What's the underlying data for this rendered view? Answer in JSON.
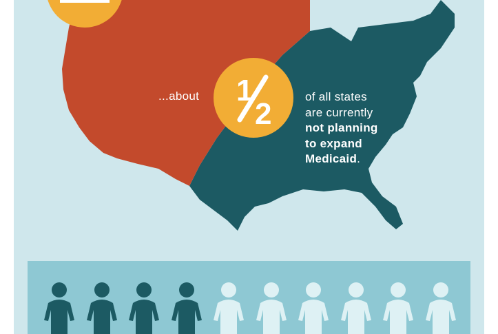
{
  "caption": {
    "lead": "...about",
    "fraction": "1/2",
    "line1": "of all states",
    "line2": "are currently",
    "bold1": "not planning",
    "bold2": "to expand",
    "bold3": "Medicaid",
    "end": "."
  },
  "colors": {
    "background": "#cfe7ec",
    "not_planning_region": "#c34a2c",
    "rest_region": "#1c5a63",
    "accent_circle": "#f2ad35",
    "people_band": "#8ec8d3",
    "person_dark": "#1c5a63",
    "person_light": "#def1f4"
  },
  "people": {
    "total": 10,
    "highlighted": 4,
    "icon": "person-icon"
  }
}
